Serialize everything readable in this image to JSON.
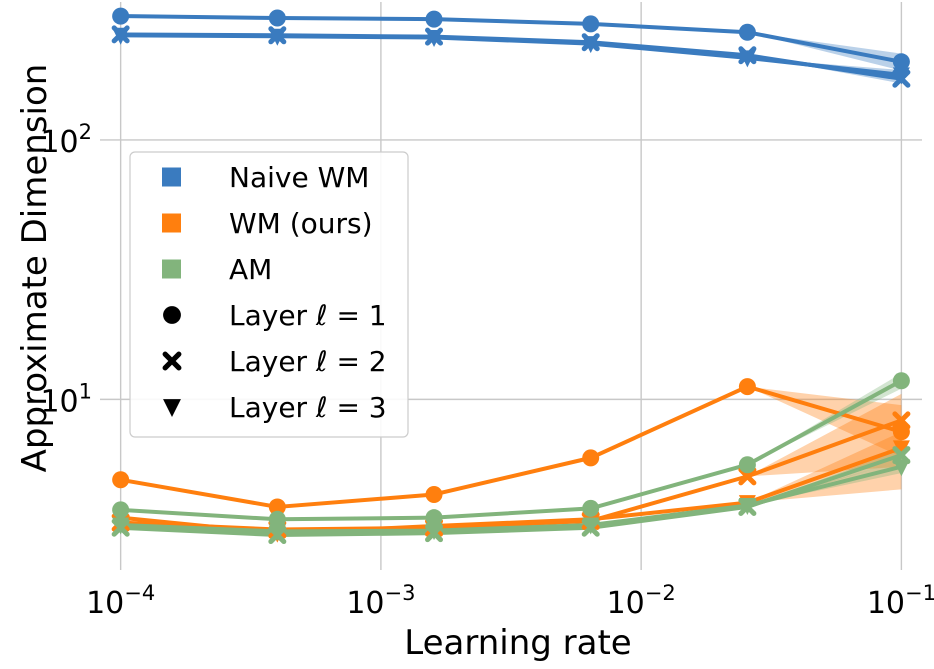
{
  "chart_data": {
    "type": "line",
    "title": "",
    "xlabel": "Learning rate",
    "ylabel": "Approximate Dimension",
    "xscale": "log",
    "yscale": "log",
    "xlim": [
      8.33e-05,
      0.12
    ],
    "ylim": [
      2.2,
      340
    ],
    "grid": true,
    "legend_position": "upper-left",
    "x": [
      0.0001,
      0.0004,
      0.0016,
      0.0064,
      0.0256,
      0.1
    ],
    "x_ticks": [
      {
        "value": 0.0001,
        "base": "10",
        "exponent": "−4"
      },
      {
        "value": 0.001,
        "base": "10",
        "exponent": "−3"
      },
      {
        "value": 0.01,
        "base": "10",
        "exponent": "−2"
      },
      {
        "value": 0.1,
        "base": "10",
        "exponent": "−1"
      }
    ],
    "y_ticks": [
      {
        "value": 10,
        "base": "10",
        "exponent": "1"
      },
      {
        "value": 100,
        "base": "10",
        "exponent": "2"
      }
    ],
    "colors": {
      "Naive WM": "#3a7bbf",
      "WM (ours)": "#ff7f0e",
      "AM": "#82b47c"
    },
    "legend": {
      "methods": [
        {
          "label": "Naive WM",
          "color": "#3a7bbf"
        },
        {
          "label": "WM (ours)",
          "color": "#ff7f0e"
        },
        {
          "label": "AM",
          "color": "#82b47c"
        }
      ],
      "layers": [
        {
          "marker": "circle",
          "prefix": "Layer ",
          "var": "ℓ",
          "suffix": " = 1"
        },
        {
          "marker": "x",
          "prefix": "Layer ",
          "var": "ℓ",
          "suffix": " = 2"
        },
        {
          "marker": "triangle",
          "prefix": "Layer ",
          "var": "ℓ",
          "suffix": " = 3"
        }
      ]
    },
    "series": [
      {
        "name": "Naive WM, Layer ℓ=1",
        "method": "Naive WM",
        "marker": "circle",
        "values": [
          300,
          295,
          292,
          280,
          260,
          200
        ],
        "band": [
          [
            300,
            300
          ],
          [
            295,
            295
          ],
          [
            292,
            292
          ],
          [
            280,
            280
          ],
          [
            260,
            260
          ],
          [
            185,
            215
          ]
        ]
      },
      {
        "name": "Naive WM, Layer ℓ=2",
        "method": "Naive WM",
        "marker": "x",
        "values": [
          255,
          253,
          250,
          238,
          212,
          172
        ],
        "band": [
          [
            255,
            255
          ],
          [
            253,
            253
          ],
          [
            250,
            250
          ],
          [
            238,
            238
          ],
          [
            212,
            212
          ],
          [
            165,
            180
          ]
        ]
      },
      {
        "name": "Naive WM, Layer ℓ=3",
        "method": "Naive WM",
        "marker": "triangle",
        "values": [
          253,
          251,
          248,
          235,
          207,
          178
        ],
        "band": [
          [
            253,
            253
          ],
          [
            251,
            251
          ],
          [
            248,
            248
          ],
          [
            235,
            235
          ],
          [
            207,
            207
          ],
          [
            170,
            186
          ]
        ]
      },
      {
        "name": "WM (ours), Layer ℓ=1",
        "method": "WM (ours)",
        "marker": "circle",
        "values": [
          4.9,
          3.85,
          4.3,
          5.95,
          11.2,
          7.5
        ],
        "band": [
          [
            4.9,
            4.9
          ],
          [
            3.85,
            3.85
          ],
          [
            4.3,
            4.3
          ],
          [
            5.95,
            5.95
          ],
          [
            11.2,
            11.2
          ],
          [
            6.0,
            9.5
          ]
        ]
      },
      {
        "name": "WM (ours), Layer ℓ=2",
        "method": "WM (ours)",
        "marker": "x",
        "values": [
          3.35,
          3.15,
          3.2,
          3.4,
          5.05,
          8.3
        ],
        "band": [
          [
            3.35,
            3.35
          ],
          [
            3.15,
            3.15
          ],
          [
            3.2,
            3.2
          ],
          [
            3.4,
            3.4
          ],
          [
            5.05,
            5.05
          ],
          [
            5.5,
            10.5
          ]
        ]
      },
      {
        "name": "WM (ours), Layer ℓ=3",
        "method": "WM (ours)",
        "marker": "triangle",
        "values": [
          3.5,
          3.05,
          3.25,
          3.45,
          4.0,
          6.5
        ],
        "band": [
          [
            3.5,
            3.5
          ],
          [
            3.05,
            3.05
          ],
          [
            3.25,
            3.25
          ],
          [
            3.45,
            3.45
          ],
          [
            4.0,
            4.0
          ],
          [
            4.5,
            7.5
          ]
        ]
      },
      {
        "name": "AM, Layer ℓ=1",
        "method": "AM",
        "marker": "circle",
        "values": [
          3.75,
          3.45,
          3.5,
          3.8,
          5.6,
          11.8
        ],
        "band": [
          [
            3.75,
            3.75
          ],
          [
            3.45,
            3.45
          ],
          [
            3.5,
            3.5
          ],
          [
            3.8,
            3.8
          ],
          [
            5.6,
            5.6
          ],
          [
            11.0,
            12.6
          ]
        ]
      },
      {
        "name": "AM, Layer ℓ=2",
        "method": "AM",
        "marker": "x",
        "values": [
          3.2,
          3.0,
          3.05,
          3.2,
          3.85,
          6.1
        ],
        "band": [
          [
            3.2,
            3.2
          ],
          [
            3.0,
            3.0
          ],
          [
            3.05,
            3.05
          ],
          [
            3.2,
            3.2
          ],
          [
            3.85,
            3.85
          ],
          [
            5.8,
            6.4
          ]
        ]
      },
      {
        "name": "AM, Layer ℓ=3",
        "method": "AM",
        "marker": "triangle",
        "values": [
          3.28,
          3.1,
          3.12,
          3.28,
          3.9,
          5.5
        ],
        "band": [
          [
            3.28,
            3.28
          ],
          [
            3.1,
            3.1
          ],
          [
            3.12,
            3.12
          ],
          [
            3.28,
            3.28
          ],
          [
            3.9,
            3.9
          ],
          [
            5.2,
            5.8
          ]
        ]
      }
    ]
  }
}
